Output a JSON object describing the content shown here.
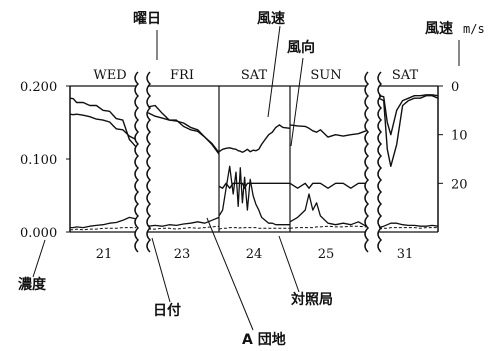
{
  "colors": {
    "ink": "#111111",
    "background": "#ffffff"
  },
  "chart_data": {
    "type": "line",
    "left_axis": {
      "label": "濃度",
      "ticks": [
        "0.000",
        "0.100",
        "0.200"
      ],
      "ylim": [
        0,
        0.2
      ]
    },
    "right_axis": {
      "label": "風速 m/s",
      "label_main": "風速",
      "label_unit": "m/s",
      "ticks": [
        "0",
        "10",
        "20"
      ],
      "ylim": [
        0,
        30
      ],
      "inverted": true
    },
    "x_axis": {
      "label": "日付",
      "ticks": [
        "21",
        "23",
        "24",
        "25",
        "31"
      ]
    },
    "weekday_header_label": "曜日",
    "weekdays": [
      "WED",
      "FRI",
      "SAT",
      "SUN",
      "SAT"
    ],
    "annotations": {
      "wind_speed": "風速",
      "wind_direction": "風向",
      "control_station": "対照局",
      "housing_complex": "A 団地"
    },
    "panels": [
      {
        "weekday": "WED",
        "date": "21",
        "x": [
          0,
          0.05,
          0.1,
          0.2,
          0.3,
          0.4,
          0.5,
          0.6,
          0.7,
          0.8,
          0.9,
          1.0
        ],
        "a_danchi": [
          0.006,
          0.006,
          0.007,
          0.006,
          0.008,
          0.009,
          0.01,
          0.012,
          0.013,
          0.016,
          0.02,
          0.018
        ],
        "control": [
          0.003,
          0.003,
          0.004,
          0.003,
          0.004,
          0.004,
          0.005,
          0.005,
          0.005,
          0.006,
          0.006,
          0.006
        ],
        "wind_speed": [
          5.8,
          5.9,
          5.8,
          6.0,
          6.3,
          6.8,
          7.0,
          7.4,
          8.8,
          9.0,
          10.3,
          11.0
        ],
        "wind_direction": [
          2.5,
          2.6,
          3.4,
          3.4,
          4.0,
          4.0,
          5.0,
          5.2,
          6.7,
          7.0,
          11.0,
          12.5
        ]
      },
      {
        "weekday": "FRI",
        "date": "23",
        "x": [
          0,
          0.1,
          0.2,
          0.3,
          0.4,
          0.5,
          0.6,
          0.7,
          0.8,
          0.9,
          1.0
        ],
        "a_danchi": [
          0.008,
          0.009,
          0.008,
          0.01,
          0.009,
          0.011,
          0.012,
          0.014,
          0.012,
          0.016,
          0.02
        ],
        "control": [
          0.004,
          0.004,
          0.005,
          0.005,
          0.004,
          0.005,
          0.006,
          0.005,
          0.006,
          0.007,
          0.008
        ],
        "wind_speed": [
          5.5,
          6.2,
          6.6,
          7.0,
          7.2,
          7.6,
          8.5,
          9.0,
          10.5,
          11.8,
          13.7
        ],
        "wind_direction": [
          4.3,
          4.0,
          5.6,
          7.0,
          7.0,
          8.3,
          9.0,
          9.3,
          10.5,
          12.0,
          14.0
        ]
      },
      {
        "weekday": "SAT",
        "date": "24",
        "x": [
          0,
          0.05,
          0.1,
          0.15,
          0.2,
          0.24,
          0.27,
          0.3,
          0.33,
          0.36,
          0.4,
          0.44,
          0.48,
          0.52,
          0.56,
          0.6,
          0.65,
          0.7,
          0.75,
          0.8,
          0.85,
          0.9,
          1.0
        ],
        "a_danchi": [
          0.022,
          0.03,
          0.06,
          0.09,
          0.052,
          0.082,
          0.035,
          0.088,
          0.04,
          0.075,
          0.03,
          0.072,
          0.05,
          0.038,
          0.03,
          0.02,
          0.016,
          0.012,
          0.012,
          0.01,
          0.01,
          0.01,
          0.01
        ],
        "control": [
          0.004,
          0.005,
          0.005,
          0.006,
          0.006,
          0.006,
          0.005,
          0.006,
          0.005,
          0.006,
          0.006,
          0.006,
          0.006,
          0.006,
          0.005,
          0.005,
          0.005,
          0.005,
          0.005,
          0.005,
          0.005,
          0.005,
          0.005
        ],
        "wind_speed": [
          13.5,
          13.0,
          12.8,
          12.7,
          12.9,
          13.0,
          13.3,
          13.4,
          13.6,
          13.4,
          13.0,
          13.5,
          13.2,
          13.3,
          13.0,
          12.0,
          11.0,
          10.0,
          9.5,
          8.5,
          8.0,
          8.5,
          8.7
        ],
        "wind_direction": [
          20.6,
          21.0,
          20.0,
          21.0,
          20.0,
          20.0,
          20.0,
          20.0,
          20.0,
          21.0,
          20.0,
          20.0,
          20.0,
          20.0,
          20.0,
          20.0,
          20.0,
          20.0,
          20.0,
          20.0,
          20.0,
          20.0,
          20.0
        ]
      },
      {
        "weekday": "SUN",
        "date": "25",
        "x": [
          0,
          0.1,
          0.2,
          0.25,
          0.3,
          0.35,
          0.4,
          0.5,
          0.6,
          0.7,
          0.8,
          0.9,
          1.0
        ],
        "a_danchi": [
          0.014,
          0.02,
          0.03,
          0.052,
          0.03,
          0.04,
          0.022,
          0.012,
          0.01,
          0.012,
          0.01,
          0.014,
          0.008
        ],
        "control": [
          0.005,
          0.006,
          0.006,
          0.006,
          0.006,
          0.007,
          0.007,
          0.008,
          0.007,
          0.007,
          0.008,
          0.008,
          0.007
        ],
        "wind_speed": [
          8.0,
          8.2,
          8.3,
          8.7,
          9.2,
          9.5,
          9.0,
          10.5,
          10.0,
          10.3,
          10.0,
          9.8,
          9.2
        ],
        "wind_direction": [
          20.0,
          21.0,
          20.0,
          21.0,
          20.0,
          20.0,
          20.0,
          21.0,
          20.0,
          20.0,
          21.0,
          20.0,
          20.0
        ]
      },
      {
        "weekday": "SAT",
        "date": "31",
        "x": [
          0,
          0.08,
          0.14,
          0.2,
          0.3,
          0.4,
          0.5,
          0.6,
          0.7,
          0.8,
          0.9,
          1.0
        ],
        "a_danchi": [
          0.006,
          0.008,
          0.01,
          0.012,
          0.012,
          0.01,
          0.009,
          0.009,
          0.008,
          0.008,
          0.009,
          0.008
        ],
        "control": [
          0.004,
          0.005,
          0.005,
          0.006,
          0.006,
          0.006,
          0.006,
          0.006,
          0.005,
          0.006,
          0.006,
          0.006
        ],
        "wind_speed": [
          2.0,
          2.2,
          7.5,
          10.0,
          5.0,
          3.0,
          2.5,
          2.0,
          2.0,
          1.8,
          1.8,
          2.0
        ],
        "wind_direction": [
          2.5,
          3.0,
          13.0,
          16.5,
          12.0,
          4.0,
          3.0,
          2.5,
          2.5,
          2.0,
          2.0,
          2.5
        ]
      }
    ]
  }
}
